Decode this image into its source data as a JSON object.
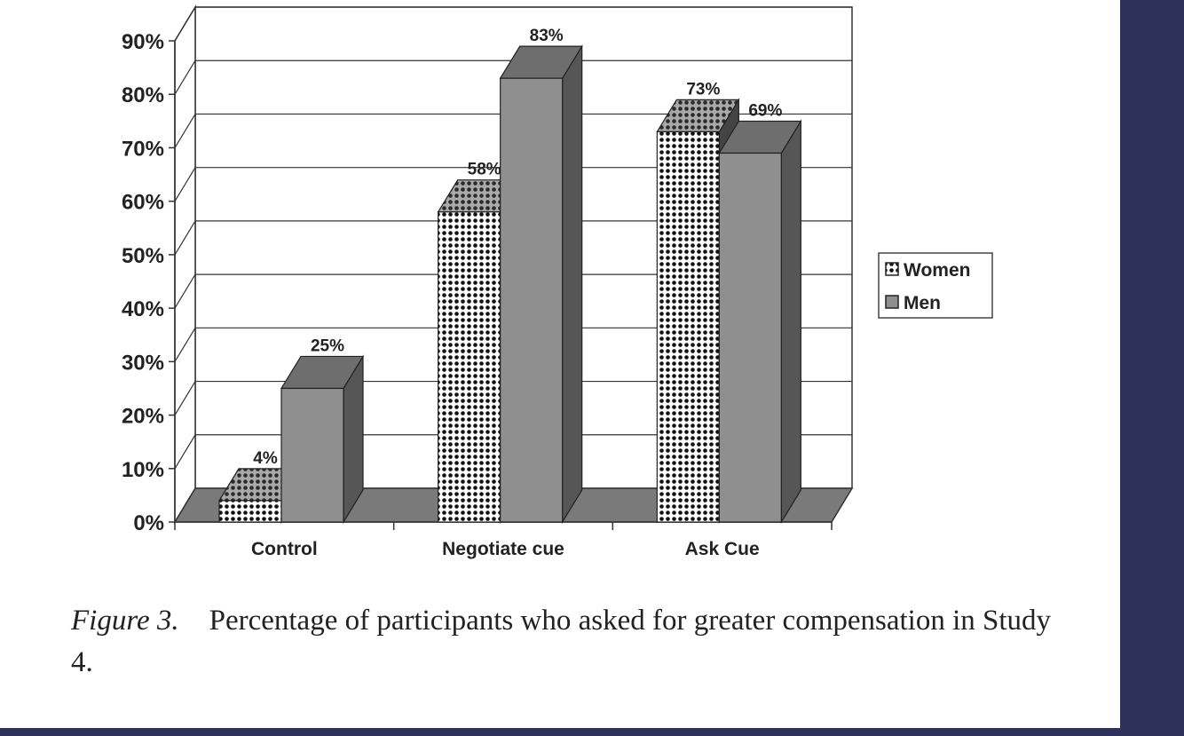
{
  "chart_data": {
    "type": "bar",
    "style": "3d-clustered-column",
    "categories": [
      "Control",
      "Negotiate cue",
      "Ask Cue"
    ],
    "series": [
      {
        "name": "Women",
        "values": [
          4,
          58,
          73
        ],
        "labels": [
          "4%",
          "58%",
          "73%"
        ],
        "pattern": "dotted",
        "color": "#ffffff"
      },
      {
        "name": "Men",
        "values": [
          25,
          83,
          69
        ],
        "labels": [
          "25%",
          "83%",
          "69%"
        ],
        "pattern": "solid",
        "color": "#8f8f8f"
      }
    ],
    "yticks": [
      "0%",
      "10%",
      "20%",
      "30%",
      "40%",
      "50%",
      "60%",
      "70%",
      "80%",
      "90%"
    ],
    "ylim": [
      0,
      90
    ],
    "y_unit": "%",
    "grid": true,
    "legend_position": "right"
  },
  "caption": {
    "label": "Figure 3.",
    "text": "Percentage of participants who asked for greater compensation in Study 4."
  },
  "colors": {
    "background": "#2e3159",
    "paper": "#ffffff",
    "men_front": "#8f8f8f",
    "men_side": "#565656",
    "men_top": "#6e6e6e"
  }
}
